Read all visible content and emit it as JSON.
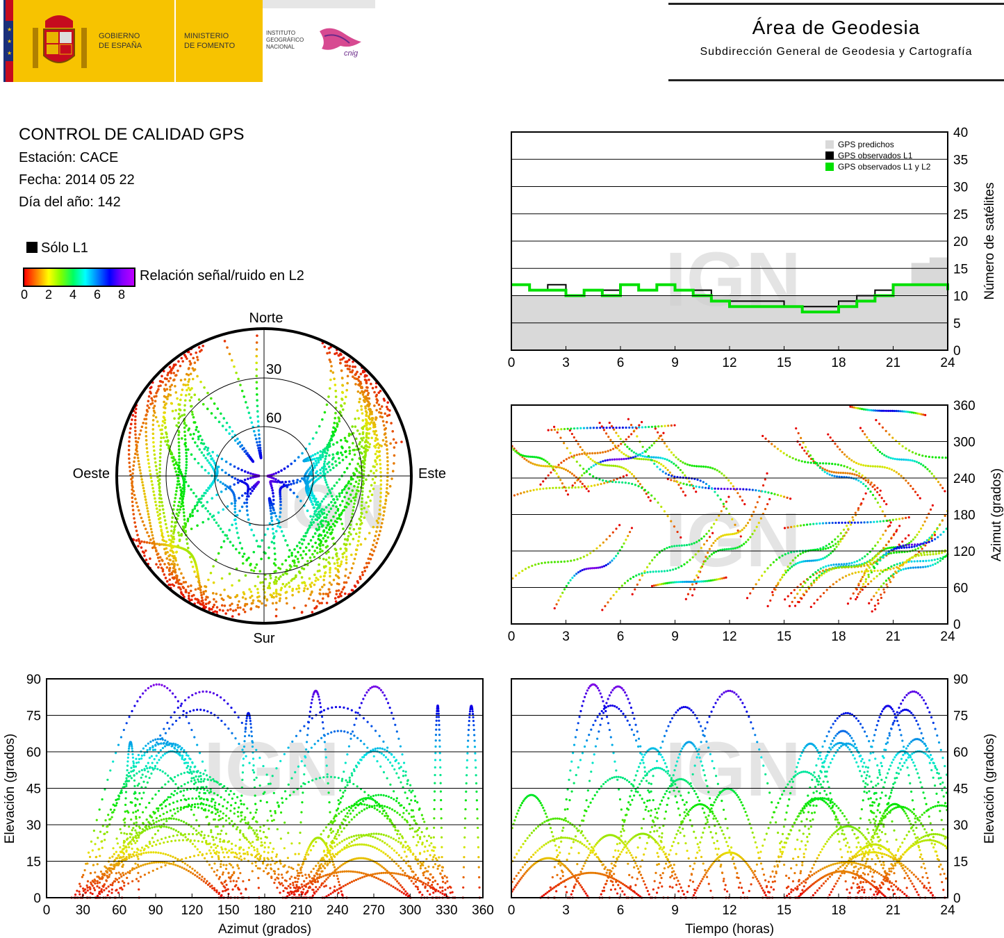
{
  "header": {
    "gov_line1": "GOBIERNO",
    "gov_line2": "DE ESPAÑA",
    "ministry_line1": "MINISTERIO",
    "ministry_line2": "DE FOMENTO",
    "ign_line1": "INSTITUTO",
    "ign_line2": "GEOGRÁFICO",
    "ign_line3": "NACIONAL",
    "cnig": "cnig",
    "area_title": "Área de Geodesia",
    "area_subtitle": "Subdirección General de Geodesia y Cartografía",
    "colors": {
      "yellow": "#f7c300",
      "red": "#c60b1e",
      "blue": "#1a2f7a"
    }
  },
  "info": {
    "title": "CONTROL DE CALIDAD GPS",
    "station": "Estación: CACE",
    "date": "Fecha: 2014 05 22",
    "doy": "Día del año: 142"
  },
  "color_legend": {
    "l1_only": "Sólo L1",
    "snr_label": "Relación señal/ruido en L2",
    "ticks": [
      "0",
      "2",
      "4",
      "6",
      "8"
    ]
  },
  "watermark": "IGN",
  "chart_data": [
    {
      "id": "satellite-count",
      "type": "area",
      "ylabel": "Número de satélites",
      "xlim": [
        0,
        24
      ],
      "ylim": [
        0,
        40
      ],
      "xticks": [
        "0",
        "3",
        "6",
        "9",
        "12",
        "15",
        "18",
        "21",
        "24"
      ],
      "yticks": [
        "0",
        "5",
        "10",
        "15",
        "20",
        "25",
        "30",
        "35",
        "40"
      ],
      "legend": {
        "position": "top-right",
        "items": [
          "GPS predichos",
          "GPS observados L1",
          "GPS observados L1 y L2"
        ]
      },
      "colors": {
        "predicted": "#d9d9d9",
        "observed_l1": "#000000",
        "observed_l1_l2": "#00e000"
      },
      "series": [
        {
          "name": "GPS predichos",
          "x": [
            0,
            1,
            2,
            3,
            4,
            5,
            6,
            7,
            8,
            9,
            10,
            11,
            12,
            13,
            14,
            15,
            16,
            17,
            18,
            19,
            20,
            21,
            22,
            23,
            24
          ],
          "values": [
            10,
            10,
            10,
            10,
            10,
            10,
            10,
            10,
            10,
            10,
            10,
            10,
            10,
            10,
            10,
            10,
            10,
            10,
            10,
            10,
            10,
            12,
            16,
            17,
            13
          ]
        },
        {
          "name": "GPS observados L1",
          "x": [
            0,
            1,
            2,
            3,
            4,
            5,
            6,
            7,
            8,
            9,
            10,
            11,
            12,
            13,
            14,
            15,
            16,
            17,
            18,
            19,
            20,
            21,
            22,
            23,
            24
          ],
          "values": [
            12,
            11,
            12,
            10,
            11,
            11,
            12,
            11,
            12,
            11,
            11,
            9,
            9,
            9,
            9,
            8,
            8,
            8,
            9,
            10,
            11,
            12,
            12,
            12,
            11
          ]
        },
        {
          "name": "GPS observados L1 y L2",
          "x": [
            0,
            1,
            2,
            3,
            4,
            5,
            6,
            7,
            8,
            9,
            10,
            11,
            12,
            13,
            14,
            15,
            16,
            17,
            18,
            19,
            20,
            21,
            22,
            23,
            24
          ],
          "values": [
            12,
            11,
            11,
            10,
            11,
            10,
            12,
            11,
            12,
            11,
            10,
            9,
            8,
            8,
            8,
            8,
            7,
            7,
            8,
            9,
            10,
            12,
            12,
            12,
            11
          ]
        }
      ]
    },
    {
      "id": "skyplot",
      "type": "scatter",
      "labels": {
        "north": "Norte",
        "south": "Sur",
        "east": "Este",
        "west": "Oeste"
      },
      "rings": [
        "30",
        "60"
      ]
    },
    {
      "id": "azimuth-time",
      "type": "scatter",
      "ylabel": "Azimut (grados)",
      "xlim": [
        0,
        24
      ],
      "ylim": [
        0,
        360
      ],
      "xticks": [
        "0",
        "3",
        "6",
        "9",
        "12",
        "15",
        "18",
        "21",
        "24"
      ],
      "yticks": [
        "0",
        "60",
        "120",
        "180",
        "240",
        "300",
        "360"
      ]
    },
    {
      "id": "elevation-azimuth",
      "type": "scatter",
      "xlabel": "Azimut (grados)",
      "ylabel": "Elevación (grados)",
      "xlim": [
        0,
        360
      ],
      "ylim": [
        0,
        90
      ],
      "xticks": [
        "0",
        "30",
        "60",
        "90",
        "120",
        "150",
        "180",
        "210",
        "240",
        "270",
        "300",
        "330",
        "360"
      ],
      "yticks": [
        "0",
        "15",
        "30",
        "45",
        "60",
        "75",
        "90"
      ]
    },
    {
      "id": "elevation-time",
      "type": "scatter",
      "xlabel": "Tiempo (horas)",
      "ylabel": "Elevación (grados)",
      "xlim": [
        0,
        24
      ],
      "ylim": [
        0,
        90
      ],
      "xticks": [
        "0",
        "3",
        "6",
        "9",
        "12",
        "15",
        "18",
        "21",
        "24"
      ],
      "yticks": [
        "0",
        "15",
        "30",
        "45",
        "60",
        "75",
        "90"
      ]
    }
  ]
}
